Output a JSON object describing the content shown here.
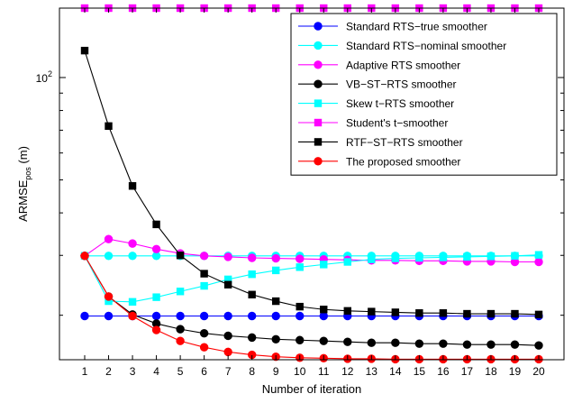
{
  "chart_data": {
    "type": "line",
    "xlabel": "Number of iteration",
    "ylabel_main": "ARMSE",
    "ylabel_sub": "pos",
    "ylabel_unit": " (m)",
    "yscale": "log",
    "xlim": [
      1,
      20
    ],
    "ylim": [
      14.8,
      160
    ],
    "grid": false,
    "legend_position": "top-right",
    "x": [
      1,
      2,
      3,
      4,
      5,
      6,
      7,
      8,
      9,
      10,
      11,
      12,
      13,
      14,
      15,
      16,
      17,
      18,
      19,
      20
    ],
    "x_ticks": [
      "1",
      "2",
      "3",
      "4",
      "5",
      "6",
      "7",
      "8",
      "9",
      "10",
      "11",
      "12",
      "13",
      "14",
      "15",
      "16",
      "17",
      "18",
      "19",
      "20"
    ],
    "y_tick_labels": [
      {
        "base": "10",
        "exp": "2",
        "value": 100
      }
    ],
    "series": [
      {
        "name": "Standard RTS−true smoother",
        "color": "#0000ff",
        "marker": "circle",
        "values": [
          19.9,
          19.9,
          19.9,
          19.9,
          19.9,
          19.9,
          19.9,
          19.9,
          19.9,
          19.9,
          19.9,
          19.9,
          19.9,
          19.9,
          19.9,
          19.9,
          19.9,
          19.9,
          19.9,
          19.9
        ]
      },
      {
        "name": "Standard RTS−nominal smoother",
        "color": "#00ffff",
        "marker": "circle",
        "values": [
          29.9,
          29.9,
          29.9,
          29.9,
          29.9,
          29.9,
          29.9,
          29.9,
          29.9,
          29.9,
          29.9,
          29.9,
          29.9,
          29.9,
          29.9,
          29.9,
          29.9,
          29.9,
          29.9,
          29.9
        ]
      },
      {
        "name": "Adaptive RTS smoother",
        "color": "#ff00ff",
        "marker": "circle",
        "values": [
          29.9,
          33.5,
          32.5,
          31.3,
          30.4,
          29.9,
          29.7,
          29.5,
          29.4,
          29.3,
          29.2,
          29.1,
          29.0,
          29.0,
          28.9,
          28.9,
          28.8,
          28.8,
          28.7,
          28.7
        ]
      },
      {
        "name": "VB−ST−RTS smoother",
        "color": "#000000",
        "marker": "circle",
        "values": [
          29.9,
          22.7,
          20.1,
          18.9,
          18.2,
          17.7,
          17.4,
          17.2,
          17.0,
          16.9,
          16.8,
          16.7,
          16.6,
          16.6,
          16.5,
          16.5,
          16.4,
          16.4,
          16.4,
          16.3
        ]
      },
      {
        "name": "Skew t−RTS smoother",
        "color": "#00ffff",
        "marker": "square",
        "values": [
          29.9,
          22.0,
          21.9,
          22.6,
          23.5,
          24.4,
          25.5,
          26.4,
          27.1,
          27.7,
          28.2,
          28.7,
          29.2,
          29.4,
          29.5,
          29.6,
          29.7,
          29.8,
          29.9,
          30.1
        ]
      },
      {
        "name": "Student's t−smoother",
        "color": "#ff00ff",
        "marker": "square",
        "values": [
          160,
          160,
          160,
          160,
          160,
          160,
          160,
          160,
          160,
          160,
          160,
          160,
          160,
          160,
          160,
          160,
          160,
          160,
          160,
          160
        ]
      },
      {
        "name": "RTF−ST−RTS smoother",
        "color": "#000000",
        "marker": "square",
        "values": [
          120,
          72,
          48,
          37,
          30,
          26.5,
          24.6,
          23.0,
          22.0,
          21.2,
          20.8,
          20.6,
          20.5,
          20.4,
          20.3,
          20.3,
          20.2,
          20.2,
          20.2,
          20.1
        ]
      },
      {
        "name": "The proposed smoother",
        "color": "#ff0000",
        "marker": "circle",
        "values": [
          29.9,
          22.7,
          19.9,
          18.1,
          16.8,
          16.1,
          15.6,
          15.3,
          15.1,
          15.0,
          14.95,
          14.9,
          14.9,
          14.85,
          14.85,
          14.85,
          14.85,
          14.85,
          14.85,
          14.85
        ]
      }
    ]
  }
}
